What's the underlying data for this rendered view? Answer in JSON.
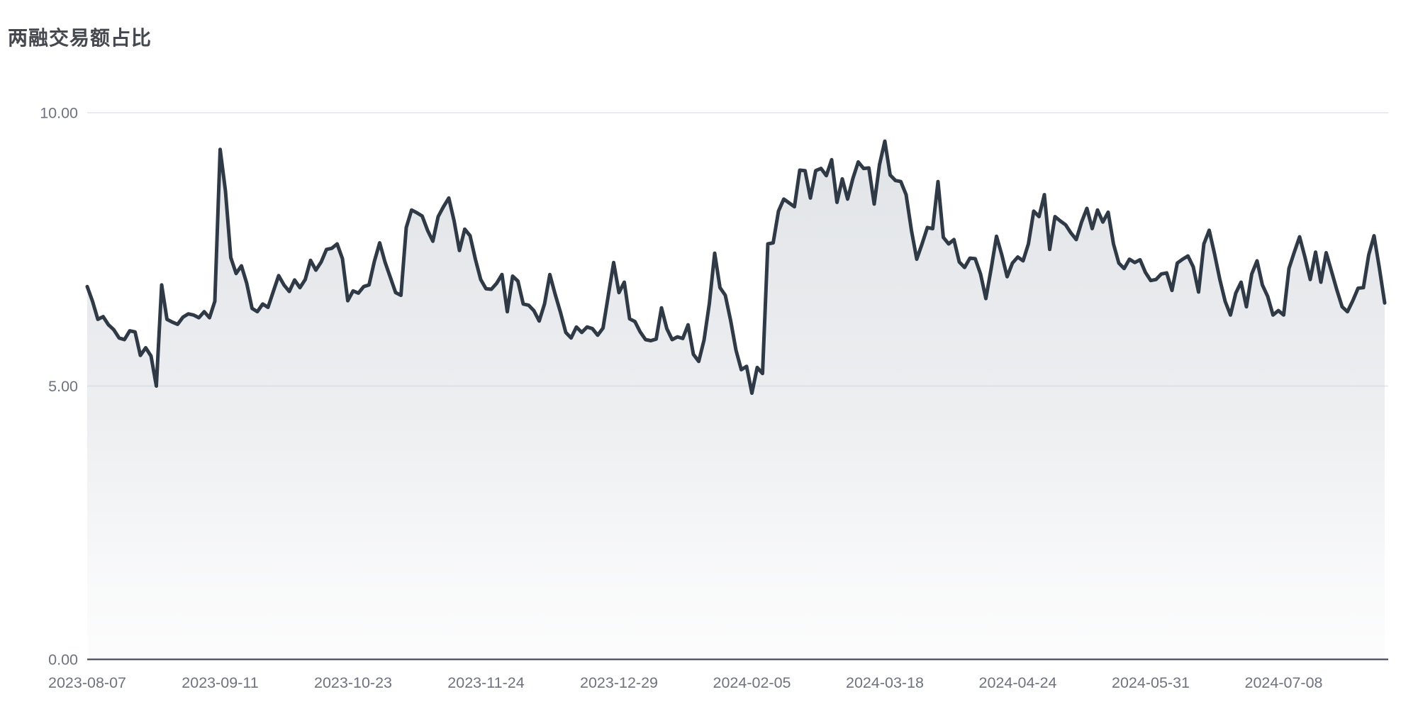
{
  "chart_data": {
    "type": "area",
    "title": "两融交易额占比",
    "xlabel": "",
    "ylabel": "",
    "ylim": [
      0,
      10
    ],
    "y_tick_labels": [
      "0.00",
      "5.00",
      "10.00"
    ],
    "x_tick_labels": [
      "2023-08-07",
      "2023-09-11",
      "2023-10-23",
      "2023-11-24",
      "2023-12-29",
      "2024-02-05",
      "2024-03-18",
      "2024-04-24",
      "2024-05-31",
      "2024-07-08"
    ],
    "x_tick_every": 25,
    "grid": "horizontal",
    "legend": "none",
    "values": [
      6.82,
      6.55,
      6.22,
      6.27,
      6.12,
      6.03,
      5.88,
      5.85,
      6.01,
      5.99,
      5.56,
      5.7,
      5.55,
      5.0,
      6.85,
      6.22,
      6.17,
      6.13,
      6.26,
      6.32,
      6.3,
      6.25,
      6.36,
      6.25,
      6.55,
      9.33,
      8.57,
      7.35,
      7.06,
      7.2,
      6.88,
      6.42,
      6.36,
      6.5,
      6.44,
      6.73,
      7.02,
      6.85,
      6.73,
      6.94,
      6.8,
      6.95,
      7.3,
      7.12,
      7.27,
      7.5,
      7.52,
      7.6,
      7.33,
      6.56,
      6.74,
      6.7,
      6.82,
      6.85,
      7.28,
      7.62,
      7.27,
      6.99,
      6.71,
      6.66,
      7.9,
      8.22,
      8.17,
      8.11,
      7.85,
      7.65,
      8.1,
      8.28,
      8.44,
      8.02,
      7.48,
      7.87,
      7.75,
      7.32,
      6.95,
      6.78,
      6.77,
      6.88,
      7.04,
      6.36,
      7.01,
      6.92,
      6.5,
      6.48,
      6.38,
      6.19,
      6.5,
      7.04,
      6.68,
      6.35,
      5.98,
      5.88,
      6.08,
      5.98,
      6.08,
      6.05,
      5.93,
      6.06,
      6.66,
      7.26,
      6.71,
      6.9,
      6.23,
      6.18,
      5.99,
      5.85,
      5.83,
      5.86,
      6.43,
      6.05,
      5.85,
      5.9,
      5.87,
      6.12,
      5.58,
      5.45,
      5.84,
      6.51,
      7.43,
      6.8,
      6.66,
      6.2,
      5.66,
      5.3,
      5.36,
      4.87,
      5.34,
      5.23,
      7.6,
      7.62,
      8.2,
      8.42,
      8.35,
      8.28,
      8.95,
      8.94,
      8.44,
      8.94,
      8.98,
      8.85,
      9.14,
      8.36,
      8.79,
      8.42,
      8.8,
      9.1,
      8.98,
      8.99,
      8.33,
      9.05,
      9.48,
      8.86,
      8.76,
      8.74,
      8.5,
      7.85,
      7.32,
      7.6,
      7.9,
      7.88,
      8.74,
      7.72,
      7.6,
      7.68,
      7.27,
      7.17,
      7.34,
      7.33,
      7.05,
      6.6,
      7.15,
      7.74,
      7.4,
      7.0,
      7.25,
      7.36,
      7.29,
      7.6,
      8.2,
      8.1,
      8.5,
      7.5,
      8.1,
      8.02,
      7.95,
      7.8,
      7.68,
      8.0,
      8.25,
      7.88,
      8.22,
      8.0,
      8.18,
      7.6,
      7.25,
      7.15,
      7.32,
      7.26,
      7.31,
      7.08,
      6.93,
      6.95,
      7.05,
      7.07,
      6.75,
      7.25,
      7.32,
      7.38,
      7.18,
      6.72,
      7.6,
      7.85,
      7.42,
      6.95,
      6.55,
      6.3,
      6.7,
      6.9,
      6.45,
      7.05,
      7.29,
      6.85,
      6.64,
      6.3,
      6.38,
      6.3,
      7.15,
      7.45,
      7.73,
      7.36,
      6.95,
      7.45,
      6.9,
      7.44,
      7.1,
      6.76,
      6.45,
      6.36,
      6.56,
      6.79,
      6.8,
      7.4,
      7.75,
      7.16,
      6.52
    ],
    "colors": {
      "line": "#2f3a46",
      "area_base": "#c7ccd3",
      "grid": "#e1e5ec",
      "axis": "#565b66",
      "tick_text": "#6e737e",
      "title_text": "#45494f"
    }
  }
}
